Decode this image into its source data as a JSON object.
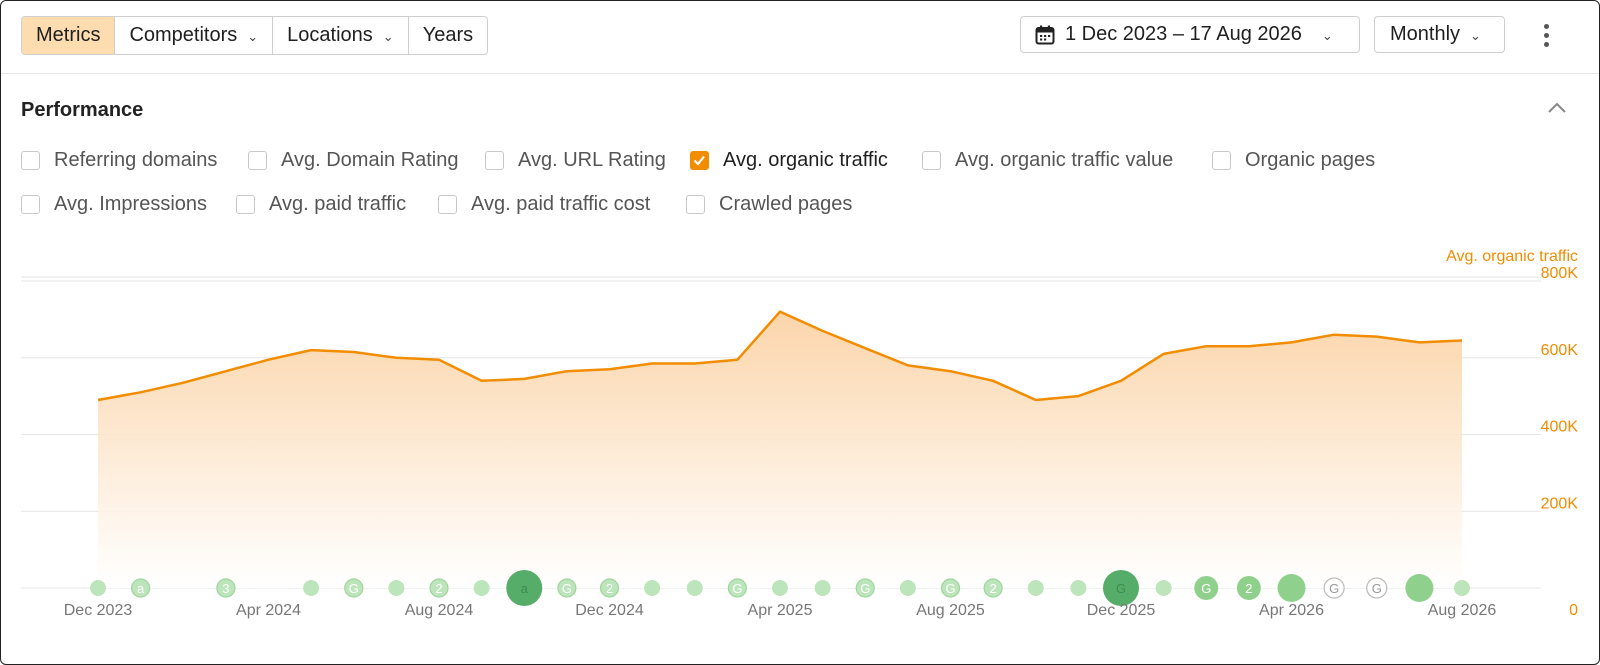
{
  "toolbar": {
    "tabs": [
      {
        "label": "Metrics",
        "active": true,
        "dropdown": false
      },
      {
        "label": "Competitors",
        "active": false,
        "dropdown": true
      },
      {
        "label": "Locations",
        "active": false,
        "dropdown": true
      },
      {
        "label": "Years",
        "active": false,
        "dropdown": false
      }
    ],
    "date_range": "1 Dec 2023 – 17 Aug 2026",
    "date_icon": "calendar-icon",
    "period": "Monthly",
    "more_icon": "more-vertical-icon"
  },
  "section": {
    "title": "Performance",
    "collapse_icon": "chevron-up-icon"
  },
  "metrics": [
    {
      "label": "Referring domains",
      "checked": false
    },
    {
      "label": "Avg. Domain Rating",
      "checked": false
    },
    {
      "label": "Avg. URL Rating",
      "checked": false
    },
    {
      "label": "Avg. organic traffic",
      "checked": true
    },
    {
      "label": "Avg. organic traffic value",
      "checked": false
    },
    {
      "label": "Organic pages",
      "checked": false
    },
    {
      "label": "Avg. Impressions",
      "checked": false
    },
    {
      "label": "Avg. paid traffic",
      "checked": false
    },
    {
      "label": "Avg. paid traffic cost",
      "checked": false
    },
    {
      "label": "Crawled pages",
      "checked": false
    }
  ],
  "colors": {
    "accent": "#f28c00",
    "area_top": "#fbd3a6",
    "grid": "#e6e6e6",
    "x_tick": "#777777",
    "event_light": "#bde5bb",
    "event_mid": "#8fd18c",
    "event_dark": "#55ad69"
  },
  "chart_data": {
    "type": "area",
    "ylabel": "Avg. organic traffic",
    "ylim": [
      0,
      800000
    ],
    "y_ticks": [
      "0",
      "200K",
      "400K",
      "600K",
      "800K"
    ],
    "x": [
      "Dec 2023",
      "Jan 2024",
      "Feb 2024",
      "Mar 2024",
      "Apr 2024",
      "May 2024",
      "Jun 2024",
      "Jul 2024",
      "Aug 2024",
      "Sep 2024",
      "Oct 2024",
      "Nov 2024",
      "Dec 2024",
      "Jan 2025",
      "Feb 2025",
      "Mar 2025",
      "Apr 2025",
      "May 2025",
      "Jun 2025",
      "Jul 2025",
      "Aug 2025",
      "Sep 2025",
      "Oct 2025",
      "Nov 2025",
      "Dec 2025",
      "Jan 2026",
      "Feb 2026",
      "Mar 2026",
      "Apr 2026",
      "May 2026",
      "Jun 2026",
      "Jul 2026",
      "Aug 2026"
    ],
    "x_tick_labels": [
      "Dec 2023",
      "Apr 2024",
      "Aug 2024",
      "Dec 2024",
      "Apr 2025",
      "Aug 2025",
      "Dec 2025",
      "Apr 2026",
      "Aug 2026"
    ],
    "series": [
      {
        "name": "Avg. organic traffic",
        "values": [
          490000,
          510000,
          535000,
          565000,
          595000,
          620000,
          615000,
          600000,
          595000,
          540000,
          545000,
          565000,
          570000,
          585000,
          585000,
          595000,
          720000,
          670000,
          625000,
          580000,
          565000,
          540000,
          490000,
          500000,
          540000,
          610000,
          630000,
          630000,
          640000,
          660000,
          655000,
          640000,
          645000
        ]
      }
    ],
    "grid": true,
    "annotation_events": [
      {
        "date": "Dec 2023",
        "label": "",
        "level": "light"
      },
      {
        "date": "Jan 2024",
        "label": "a",
        "level": "ring"
      },
      {
        "date": "Mar 2024",
        "label": "3",
        "level": "ring"
      },
      {
        "date": "May 2024",
        "label": "",
        "level": "light"
      },
      {
        "date": "Jun 2024",
        "label": "G",
        "level": "ring"
      },
      {
        "date": "Jul 2024",
        "label": "",
        "level": "light"
      },
      {
        "date": "Aug 2024",
        "label": "2",
        "level": "ring"
      },
      {
        "date": "Sep 2024",
        "label": "",
        "level": "light"
      },
      {
        "date": "Oct 2024",
        "label": "a",
        "level": "dark"
      },
      {
        "date": "Nov 2024",
        "label": "G",
        "level": "ring"
      },
      {
        "date": "Dec 2024",
        "label": "2",
        "level": "ring"
      },
      {
        "date": "Jan 2025",
        "label": "",
        "level": "light"
      },
      {
        "date": "Feb 2025",
        "label": "",
        "level": "light"
      },
      {
        "date": "Mar 2025",
        "label": "G",
        "level": "ring"
      },
      {
        "date": "Apr 2025",
        "label": "",
        "level": "light"
      },
      {
        "date": "May 2025",
        "label": "",
        "level": "light"
      },
      {
        "date": "Jun 2025",
        "label": "G",
        "level": "ring"
      },
      {
        "date": "Jul 2025",
        "label": "",
        "level": "light"
      },
      {
        "date": "Aug 2025",
        "label": "G",
        "level": "ring"
      },
      {
        "date": "Sep 2025",
        "label": "2",
        "level": "ring"
      },
      {
        "date": "Oct 2025",
        "label": "",
        "level": "light"
      },
      {
        "date": "Nov 2025",
        "label": "",
        "level": "light"
      },
      {
        "date": "Dec 2025",
        "label": "G",
        "level": "dark"
      },
      {
        "date": "Jan 2026",
        "label": "",
        "level": "light"
      },
      {
        "date": "Feb 2026",
        "label": "G",
        "level": "mid"
      },
      {
        "date": "Mar 2026",
        "label": "2",
        "level": "mid"
      },
      {
        "date": "Apr 2026",
        "label": "",
        "level": "mid"
      },
      {
        "date": "May 2026",
        "label": "G",
        "level": "outline"
      },
      {
        "date": "Jun 2026",
        "label": "G",
        "level": "outline"
      },
      {
        "date": "Jul 2026",
        "label": "",
        "level": "mid"
      },
      {
        "date": "Aug 2026",
        "label": "",
        "level": "light"
      }
    ]
  }
}
